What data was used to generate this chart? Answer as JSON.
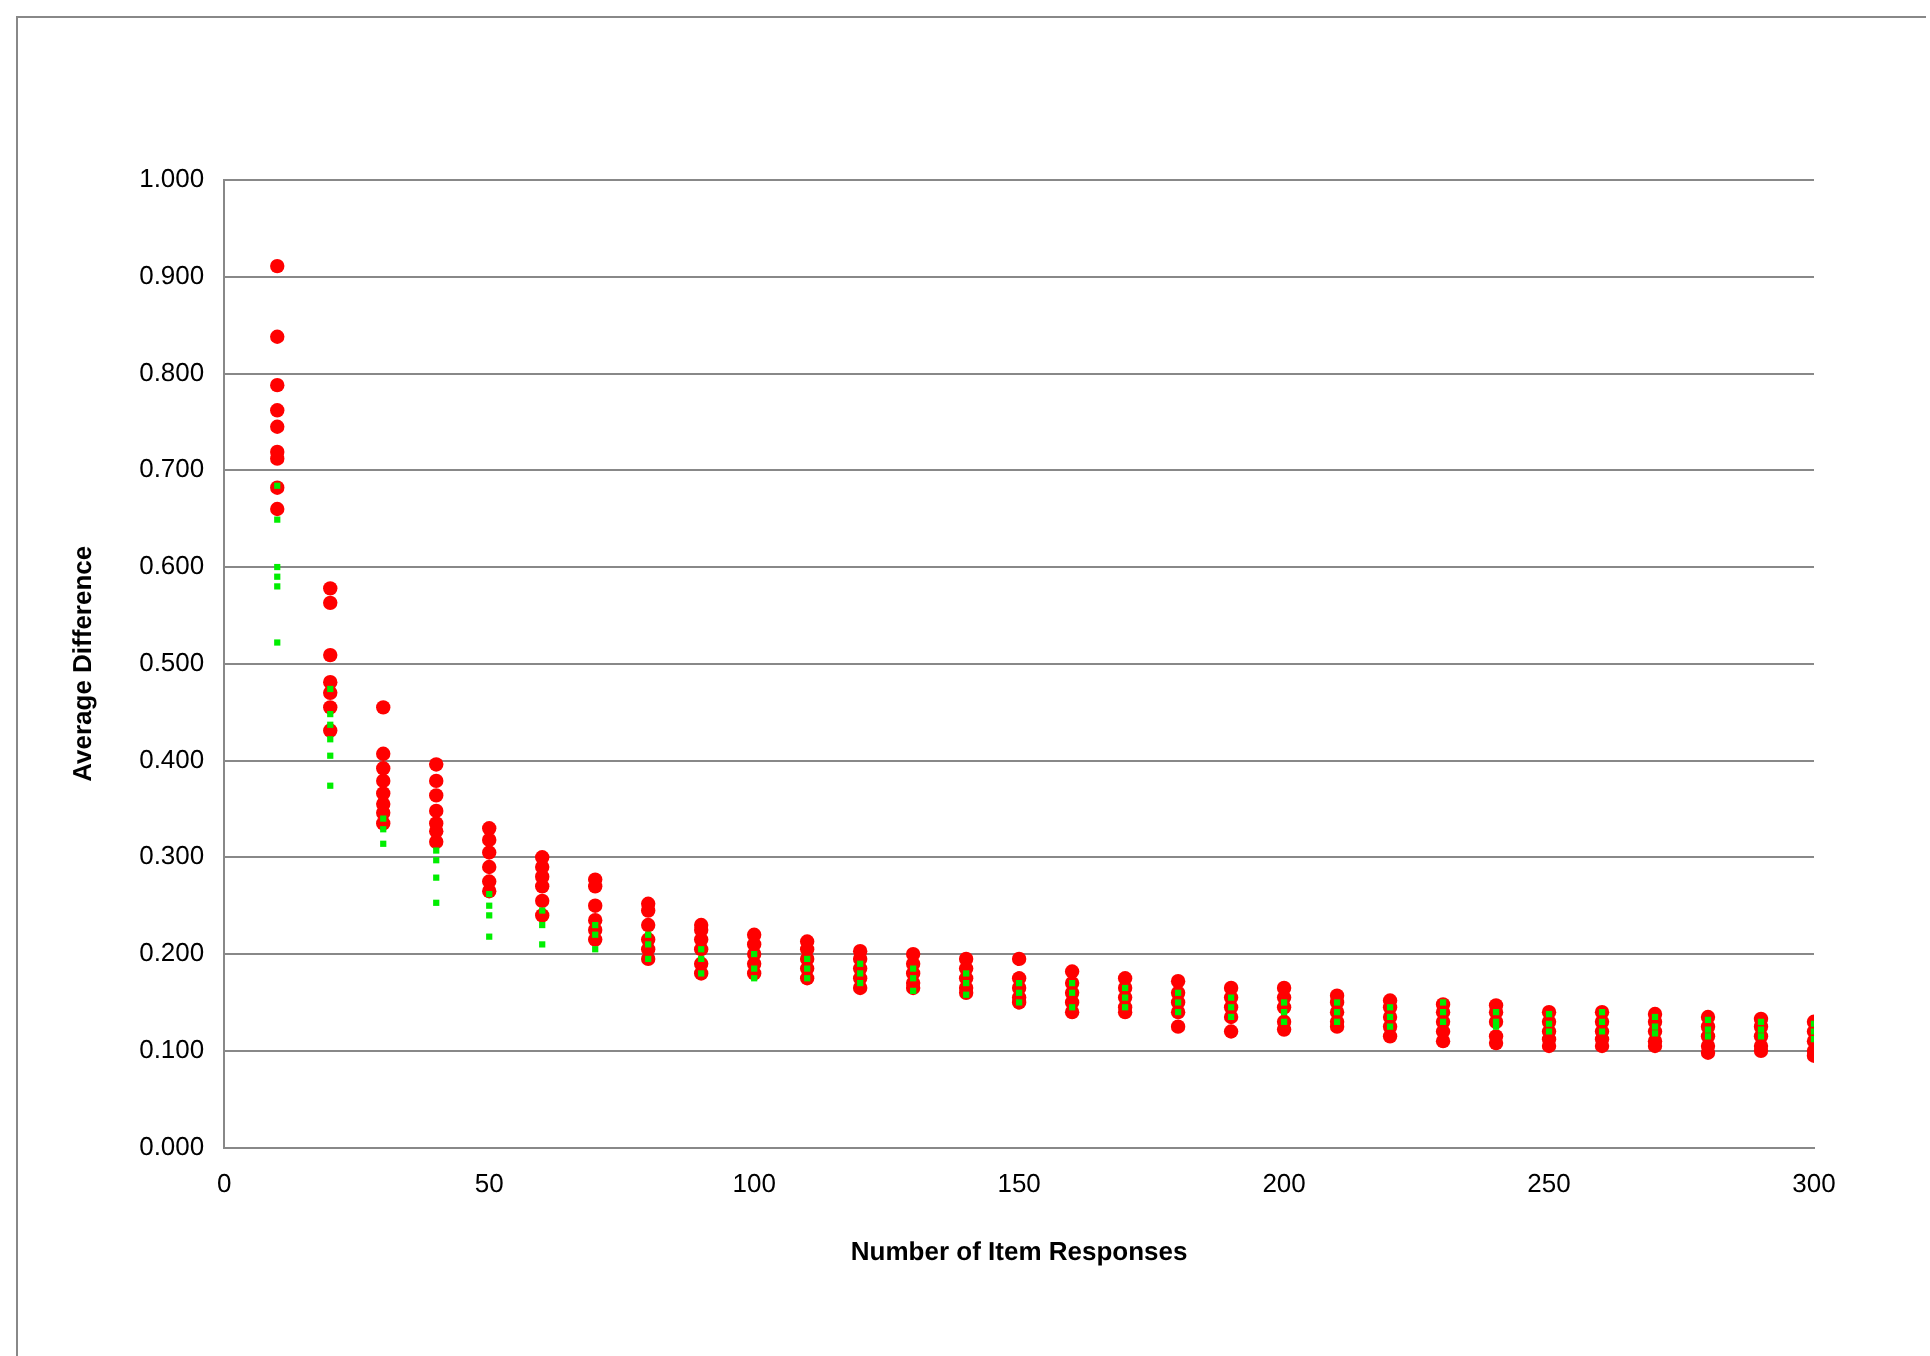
{
  "chart_data": {
    "type": "scatter",
    "xlabel": "Number of Item Responses",
    "ylabel": "Average Difference",
    "xlim": [
      0,
      300
    ],
    "xticks": [
      0,
      50,
      100,
      150,
      200,
      250,
      300
    ],
    "ylim": [
      0,
      1
    ],
    "yticks": [
      {
        "value": 0,
        "label": "0.000"
      },
      {
        "value": 0.1,
        "label": "0.100"
      },
      {
        "value": 0.2,
        "label": "0.200"
      },
      {
        "value": 0.3,
        "label": "0.300"
      },
      {
        "value": 0.4,
        "label": "0.400"
      },
      {
        "value": 0.5,
        "label": "0.500"
      },
      {
        "value": 0.6,
        "label": "0.600"
      },
      {
        "value": 0.7,
        "label": "0.700"
      },
      {
        "value": 0.8,
        "label": "0.800"
      },
      {
        "value": 0.9,
        "label": "0.900"
      },
      {
        "value": 1,
        "label": "1.000"
      }
    ],
    "grid": "y",
    "legend": false,
    "series": [
      {
        "color": "#ff0000",
        "marker": "circle",
        "x": [
          10,
          10,
          10,
          10,
          10,
          10,
          10,
          10,
          10,
          20,
          20,
          20,
          20,
          20,
          20,
          20,
          30,
          30,
          30,
          30,
          30,
          30,
          30,
          30,
          40,
          40,
          40,
          40,
          40,
          40,
          40,
          50,
          50,
          50,
          50,
          50,
          50,
          60,
          60,
          60,
          60,
          60,
          60,
          70,
          70,
          70,
          70,
          70,
          70,
          80,
          80,
          80,
          80,
          80,
          80,
          90,
          90,
          90,
          90,
          90,
          90,
          100,
          100,
          100,
          100,
          100,
          110,
          110,
          110,
          110,
          110,
          120,
          120,
          120,
          120,
          120,
          130,
          130,
          130,
          130,
          130,
          140,
          140,
          140,
          140,
          140,
          150,
          150,
          150,
          150,
          150,
          160,
          160,
          160,
          160,
          160,
          170,
          170,
          170,
          170,
          170,
          180,
          180,
          180,
          180,
          180,
          190,
          190,
          190,
          190,
          190,
          200,
          200,
          200,
          200,
          200,
          210,
          210,
          210,
          210,
          210,
          220,
          220,
          220,
          220,
          220,
          230,
          230,
          230,
          230,
          230,
          240,
          240,
          240,
          240,
          240,
          250,
          250,
          250,
          250,
          250,
          260,
          260,
          260,
          260,
          260,
          270,
          270,
          270,
          270,
          270,
          280,
          280,
          280,
          280,
          280,
          290,
          290,
          290,
          290,
          290,
          300,
          300,
          300,
          300,
          300
        ],
        "values": [
          0.911,
          0.838,
          0.788,
          0.762,
          0.745,
          0.719,
          0.712,
          0.682,
          0.66,
          0.578,
          0.563,
          0.509,
          0.481,
          0.47,
          0.455,
          0.431,
          0.455,
          0.407,
          0.392,
          0.379,
          0.366,
          0.355,
          0.346,
          0.335,
          0.396,
          0.379,
          0.364,
          0.348,
          0.335,
          0.327,
          0.316,
          0.33,
          0.318,
          0.305,
          0.29,
          0.275,
          0.265,
          0.3,
          0.29,
          0.28,
          0.27,
          0.255,
          0.24,
          0.277,
          0.27,
          0.25,
          0.235,
          0.225,
          0.215,
          0.252,
          0.245,
          0.23,
          0.215,
          0.205,
          0.195,
          0.23,
          0.225,
          0.215,
          0.205,
          0.19,
          0.18,
          0.22,
          0.21,
          0.2,
          0.19,
          0.18,
          0.213,
          0.205,
          0.195,
          0.185,
          0.175,
          0.203,
          0.195,
          0.185,
          0.175,
          0.165,
          0.2,
          0.19,
          0.18,
          0.17,
          0.165,
          0.195,
          0.185,
          0.175,
          0.165,
          0.16,
          0.195,
          0.175,
          0.165,
          0.155,
          0.15,
          0.182,
          0.17,
          0.16,
          0.15,
          0.14,
          0.175,
          0.165,
          0.155,
          0.145,
          0.14,
          0.172,
          0.16,
          0.15,
          0.14,
          0.125,
          0.165,
          0.155,
          0.145,
          0.135,
          0.12,
          0.165,
          0.155,
          0.145,
          0.13,
          0.122,
          0.157,
          0.15,
          0.14,
          0.13,
          0.125,
          0.152,
          0.145,
          0.135,
          0.125,
          0.115,
          0.148,
          0.14,
          0.13,
          0.12,
          0.11,
          0.147,
          0.14,
          0.13,
          0.115,
          0.108,
          0.14,
          0.13,
          0.12,
          0.112,
          0.105,
          0.14,
          0.13,
          0.12,
          0.112,
          0.105,
          0.138,
          0.13,
          0.12,
          0.11,
          0.105,
          0.135,
          0.125,
          0.115,
          0.105,
          0.098,
          0.133,
          0.125,
          0.115,
          0.105,
          0.1,
          0.13,
          0.12,
          0.11,
          0.1,
          0.095
        ]
      },
      {
        "color": "#00ee00",
        "marker": "square",
        "x": [
          10,
          10,
          10,
          10,
          10,
          10,
          20,
          20,
          20,
          20,
          20,
          20,
          30,
          30,
          30,
          40,
          40,
          40,
          40,
          50,
          50,
          50,
          50,
          60,
          60,
          60,
          70,
          70,
          70,
          80,
          80,
          80,
          90,
          90,
          90,
          100,
          100,
          100,
          110,
          110,
          110,
          120,
          120,
          120,
          130,
          130,
          130,
          140,
          140,
          140,
          150,
          150,
          150,
          160,
          160,
          160,
          170,
          170,
          170,
          180,
          180,
          180,
          190,
          190,
          190,
          200,
          200,
          200,
          210,
          210,
          210,
          220,
          220,
          220,
          230,
          230,
          230,
          240,
          240,
          240,
          250,
          250,
          250,
          260,
          260,
          260,
          270,
          270,
          270,
          280,
          280,
          280,
          290,
          290,
          290,
          300,
          300,
          300
        ],
        "values": [
          0.684,
          0.649,
          0.6,
          0.59,
          0.58,
          0.522,
          0.474,
          0.448,
          0.437,
          0.422,
          0.405,
          0.374,
          0.34,
          0.329,
          0.314,
          0.307,
          0.297,
          0.279,
          0.253,
          0.262,
          0.25,
          0.24,
          0.218,
          0.245,
          0.23,
          0.21,
          0.23,
          0.22,
          0.205,
          0.22,
          0.21,
          0.195,
          0.205,
          0.195,
          0.18,
          0.2,
          0.185,
          0.175,
          0.195,
          0.185,
          0.175,
          0.19,
          0.18,
          0.17,
          0.185,
          0.175,
          0.162,
          0.18,
          0.17,
          0.158,
          0.17,
          0.16,
          0.15,
          0.17,
          0.16,
          0.145,
          0.165,
          0.155,
          0.145,
          0.16,
          0.15,
          0.14,
          0.155,
          0.145,
          0.135,
          0.15,
          0.14,
          0.13,
          0.15,
          0.14,
          0.13,
          0.145,
          0.135,
          0.125,
          0.15,
          0.14,
          0.13,
          0.14,
          0.13,
          0.125,
          0.138,
          0.128,
          0.12,
          0.14,
          0.13,
          0.12,
          0.135,
          0.125,
          0.118,
          0.132,
          0.122,
          0.115,
          0.13,
          0.122,
          0.115,
          0.128,
          0.12,
          0.112
        ]
      }
    ]
  }
}
